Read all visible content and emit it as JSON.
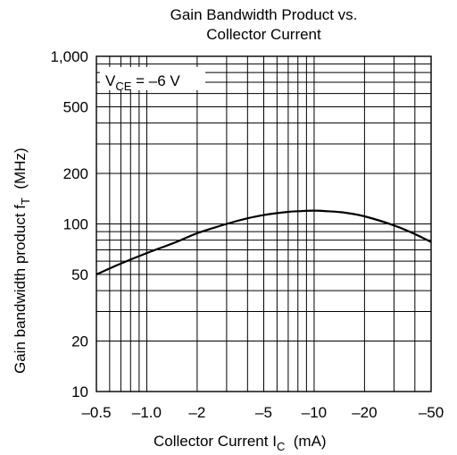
{
  "chart_data": {
    "type": "line",
    "title_line1": "Gain Bandwidth Product vs.",
    "title_line2": "Collector Current",
    "xlabel_main": "Collector Current  I",
    "xlabel_sub": "C",
    "xlabel_unit": "  (mA)",
    "ylabel_main": "Gain bandwidth product  f",
    "ylabel_sub": "T",
    "ylabel_unit": "  (MHz)",
    "annotation_main": "V",
    "annotation_sub": "CE",
    "annotation_rest": " = –6 V",
    "x_scale": "log",
    "y_scale": "log",
    "xlim": [
      -0.5,
      -50
    ],
    "ylim": [
      10,
      1000
    ],
    "grid": true,
    "x_ticks": [
      {
        "value": -0.5,
        "label": "–0.5"
      },
      {
        "value": -1,
        "label": "–1.0"
      },
      {
        "value": -2,
        "label": "–2"
      },
      {
        "value": -5,
        "label": "–5"
      },
      {
        "value": -10,
        "label": "–10"
      },
      {
        "value": -20,
        "label": "–20"
      },
      {
        "value": -50,
        "label": "–50"
      }
    ],
    "y_ticks": [
      {
        "value": 10,
        "label": "10"
      },
      {
        "value": 20,
        "label": "20"
      },
      {
        "value": 50,
        "label": "50"
      },
      {
        "value": 100,
        "label": "100"
      },
      {
        "value": 200,
        "label": "200"
      },
      {
        "value": 500,
        "label": "500"
      },
      {
        "value": 1000,
        "label": "1,000"
      }
    ],
    "series": [
      {
        "x": [
          -0.5,
          -0.7,
          -1,
          -1.5,
          -2,
          -3,
          -4,
          -5,
          -7,
          -8,
          -10,
          -12,
          -15,
          -20,
          -30,
          -40,
          -50
        ],
        "y": [
          50,
          58,
          67,
          78,
          88,
          100,
          108,
          113,
          118,
          119,
          120,
          119,
          117,
          111,
          98,
          87,
          78
        ]
      }
    ]
  }
}
